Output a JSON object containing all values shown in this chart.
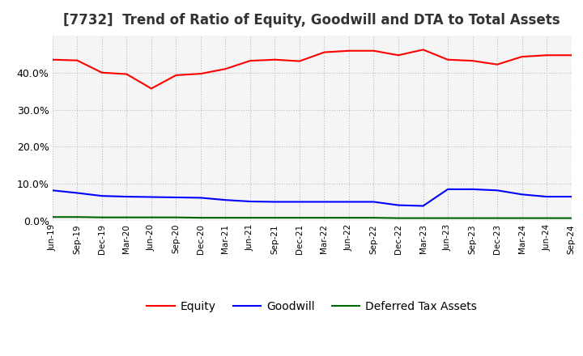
{
  "title": "[7732]  Trend of Ratio of Equity, Goodwill and DTA to Total Assets",
  "x_labels": [
    "Jun-19",
    "Sep-19",
    "Dec-19",
    "Mar-20",
    "Jun-20",
    "Sep-20",
    "Dec-20",
    "Mar-21",
    "Jun-21",
    "Sep-21",
    "Dec-21",
    "Mar-22",
    "Jun-22",
    "Sep-22",
    "Dec-22",
    "Mar-23",
    "Jun-23",
    "Sep-23",
    "Dec-23",
    "Mar-24",
    "Jun-24",
    "Sep-24"
  ],
  "equity": [
    0.435,
    0.433,
    0.4,
    0.396,
    0.357,
    0.393,
    0.397,
    0.41,
    0.432,
    0.435,
    0.431,
    0.455,
    0.459,
    0.459,
    0.447,
    0.462,
    0.435,
    0.432,
    0.422,
    0.443,
    0.447,
    0.447
  ],
  "goodwill": [
    0.082,
    0.075,
    0.067,
    0.065,
    0.064,
    0.063,
    0.062,
    0.056,
    0.052,
    0.051,
    0.051,
    0.051,
    0.051,
    0.051,
    0.042,
    0.04,
    0.085,
    0.085,
    0.082,
    0.071,
    0.065,
    0.065
  ],
  "dta": [
    0.01,
    0.01,
    0.009,
    0.009,
    0.009,
    0.009,
    0.008,
    0.008,
    0.008,
    0.008,
    0.008,
    0.008,
    0.008,
    0.008,
    0.007,
    0.007,
    0.007,
    0.007,
    0.007,
    0.007,
    0.007,
    0.007
  ],
  "equity_color": "#ff0000",
  "goodwill_color": "#0000ff",
  "dta_color": "#006400",
  "ylim": [
    0.0,
    0.5
  ],
  "yticks": [
    0.0,
    0.1,
    0.2,
    0.3,
    0.4
  ],
  "background_color": "#ffffff",
  "plot_bg_color": "#f5f5f5",
  "grid_color": "#bbbbbb",
  "title_fontsize": 12,
  "legend_fontsize": 10
}
